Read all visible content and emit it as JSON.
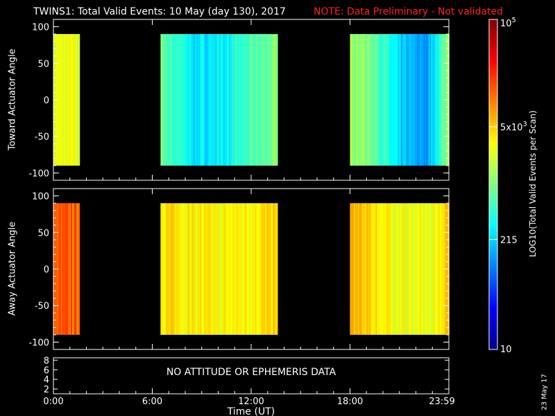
{
  "title": {
    "main": "TWINS1: Total Valid Events: 10 May (day 130), 2017",
    "note": "NOTE: Data Preliminary - Not validated",
    "note_color": "#ff2020"
  },
  "stamp": "23 May 17",
  "colorbar": {
    "label": "LOG10(Total Valid Events per Scan)",
    "scale": "log",
    "range": [
      10,
      100000
    ],
    "ticks": [
      {
        "value": 10,
        "label": "10"
      },
      {
        "value": 215,
        "label": "215"
      },
      {
        "value": 5000,
        "label": "5x10^3"
      },
      {
        "value": 100000,
        "label": "10^5"
      }
    ]
  },
  "chart_data": [
    {
      "type": "heatmap",
      "ylabel": "Toward Actuator Angle",
      "xlabel": "",
      "xlim": [
        0,
        24
      ],
      "ylim": [
        -110,
        110
      ],
      "y_data_range": [
        -90,
        90
      ],
      "yticks": [
        "100",
        "50",
        "0",
        "-50",
        "-100"
      ],
      "data_intervals_ut": [
        [
          0.0,
          1.6
        ],
        [
          6.5,
          13.6
        ],
        [
          18.0,
          24.0
        ]
      ],
      "intervals_level": [
        {
          "segments": [
            [
              0,
              0.6
            ],
            [
              0.2,
              0.6
            ]
          ]
        },
        {
          "segments": [
            [
              0,
              0.48
            ],
            [
              0.3,
              0.35
            ],
            [
              0.55,
              0.37
            ],
            [
              0.8,
              0.45
            ],
            [
              1,
              0.5
            ]
          ]
        },
        {
          "segments": [
            [
              0,
              0.55
            ],
            [
              0.25,
              0.48
            ],
            [
              0.5,
              0.32
            ],
            [
              0.75,
              0.27
            ],
            [
              0.9,
              0.4
            ],
            [
              1,
              0.58
            ]
          ]
        }
      ]
    },
    {
      "type": "heatmap",
      "ylabel": "Away Actuator Angle",
      "xlabel": "",
      "xlim": [
        0,
        24
      ],
      "ylim": [
        -110,
        110
      ],
      "y_data_range": [
        -90,
        90
      ],
      "yticks": [
        "100",
        "50",
        "0",
        "-50",
        "-100"
      ],
      "data_intervals_ut": [
        [
          0.0,
          1.6
        ],
        [
          6.5,
          13.6
        ],
        [
          18.0,
          24.0
        ]
      ],
      "intervals_level": [
        {
          "segments": [
            [
              0,
              0.78
            ],
            [
              1,
              0.78
            ]
          ]
        },
        {
          "segments": [
            [
              0,
              0.66
            ],
            [
              0.5,
              0.62
            ],
            [
              1,
              0.66
            ]
          ]
        },
        {
          "segments": [
            [
              0,
              0.7
            ],
            [
              0.4,
              0.62
            ],
            [
              0.8,
              0.6
            ],
            [
              1,
              0.68
            ]
          ]
        }
      ]
    },
    {
      "type": "line",
      "ylabel": "",
      "xlabel": "Time (UT)",
      "ylim": [
        1,
        8.5
      ],
      "yticks": [
        "8",
        "6",
        "4",
        "2"
      ],
      "xticks": [
        "0:00",
        "6:00",
        "12:00",
        "18:00",
        "23:59"
      ],
      "message": "NO ATTITUDE OR EPHEMERIS DATA"
    }
  ]
}
